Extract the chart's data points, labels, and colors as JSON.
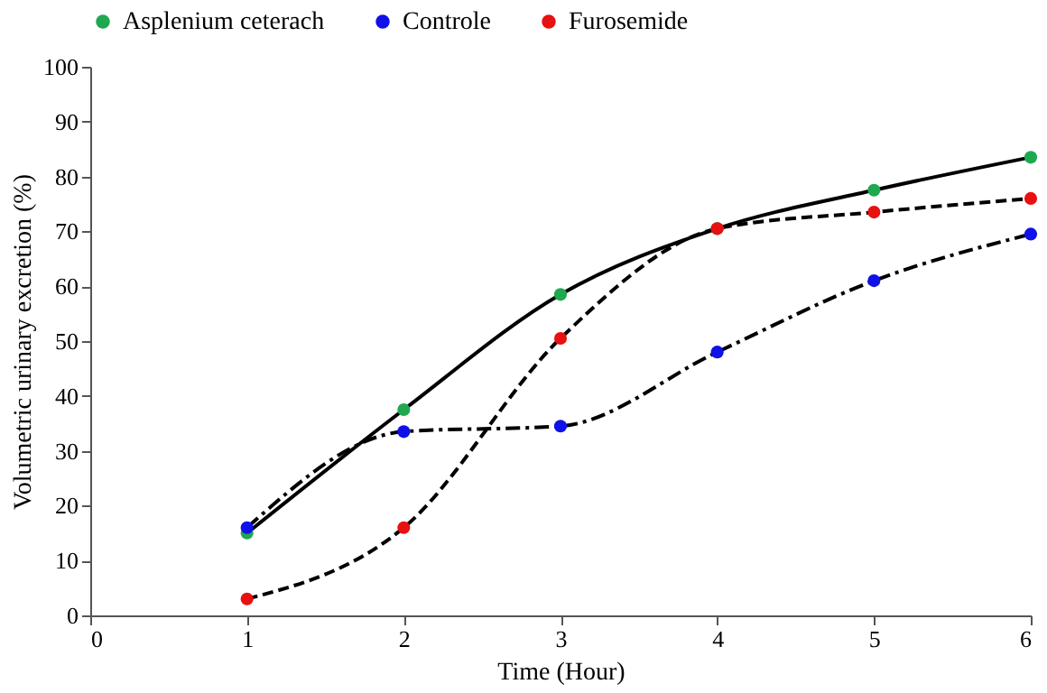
{
  "chart_data": {
    "type": "line",
    "xlabel": "Time (Hour)",
    "ylabel": "Volumetric urinary excretion (%)",
    "x": [
      1,
      2,
      3,
      4,
      5,
      6
    ],
    "series": [
      {
        "name": "Asplenium ceterach",
        "color": "#1fa84f",
        "line_style": "solid",
        "values": [
          15,
          37.5,
          58.5,
          70.5,
          77.5,
          83.5
        ]
      },
      {
        "name": "Controle",
        "color": "#1010e8",
        "line_style": "dashdot",
        "values": [
          16,
          33.5,
          34.5,
          48,
          61,
          69.5
        ]
      },
      {
        "name": "Furosemide",
        "color": "#e81010",
        "line_style": "dashed",
        "values": [
          3,
          16,
          50.5,
          70.5,
          73.5,
          76
        ]
      }
    ],
    "xlim": [
      0,
      6
    ],
    "xticks": [
      0,
      1,
      2,
      3,
      4,
      5,
      6
    ],
    "ylim": [
      0,
      100
    ],
    "yticks": [
      0,
      10,
      20,
      30,
      40,
      50,
      60,
      70,
      80,
      90,
      100
    ],
    "grid": false,
    "legend": "top",
    "marker": "circle"
  }
}
